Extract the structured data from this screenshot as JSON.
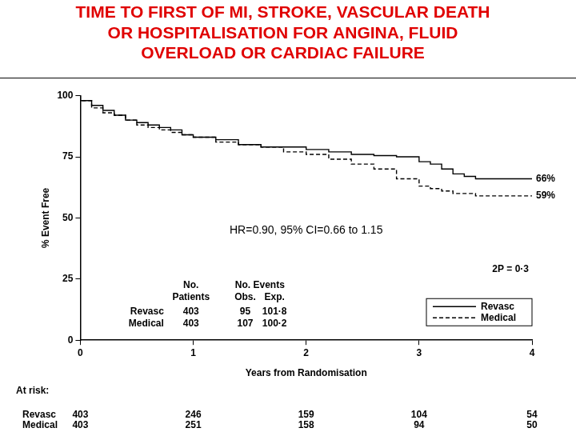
{
  "chart_data": {
    "type": "line",
    "title": [
      "TIME TO FIRST OF MI, STROKE, VASCULAR DEATH",
      "OR HOSPITALISATION FOR ANGINA, FLUID",
      "OVERLOAD OR CARDIAC FAILURE"
    ],
    "x_label": "Years from Randomisation",
    "y_label": "% Event Free",
    "x": [
      0,
      0.1,
      0.2,
      0.3,
      0.4,
      0.5,
      0.6,
      0.7,
      0.8,
      0.9,
      1.0,
      1.2,
      1.4,
      1.6,
      1.8,
      2.0,
      2.2,
      2.4,
      2.6,
      2.8,
      3.0,
      3.1,
      3.2,
      3.3,
      3.4,
      3.5,
      3.6,
      3.8,
      4.0
    ],
    "series": [
      {
        "name": "Revasc",
        "color": "#000000",
        "line_style": "solid",
        "end_label": "66%",
        "values": [
          100,
          98,
          96,
          94,
          92,
          90,
          89,
          88,
          87,
          86,
          84,
          83,
          82,
          80,
          79,
          79,
          78,
          77,
          76,
          75.5,
          75,
          73,
          72,
          70,
          68,
          67,
          66,
          66,
          66
        ]
      },
      {
        "name": "Medical",
        "color": "#000000",
        "line_style": "dashed",
        "end_label": "59%",
        "values": [
          100,
          98,
          95,
          93,
          92,
          90,
          88,
          87,
          86,
          85,
          84,
          83,
          81,
          80,
          79,
          77,
          76,
          74,
          72,
          70,
          66,
          63,
          62,
          61,
          60,
          60,
          59,
          59,
          59
        ]
      }
    ],
    "xlim": [
      0,
      4
    ],
    "xticks": [
      0,
      1,
      2,
      3,
      4
    ],
    "ylim": [
      0,
      100
    ],
    "yticks": [
      0,
      25,
      50,
      75,
      100
    ],
    "grid": false,
    "legend": "lower right",
    "annotations": [
      "HR=0.90, 95% CI=0.66 to 1.15",
      "2P = 0·3"
    ],
    "events_table": {
      "header_top": [
        "No.",
        "No. Events"
      ],
      "header_bottom": [
        "Patients",
        "Obs.",
        "Exp."
      ],
      "rows": [
        [
          "Revasc",
          403,
          95,
          "101·8"
        ],
        [
          "Medical",
          403,
          107,
          "100·2"
        ]
      ]
    },
    "at_risk": {
      "title": "At risk:",
      "x": [
        0,
        1,
        2,
        3,
        4
      ],
      "rows": [
        {
          "name": "Revasc",
          "values": [
            403,
            246,
            159,
            104,
            54
          ]
        },
        {
          "name": "Medical",
          "values": [
            403,
            251,
            158,
            94,
            50
          ]
        }
      ]
    }
  }
}
